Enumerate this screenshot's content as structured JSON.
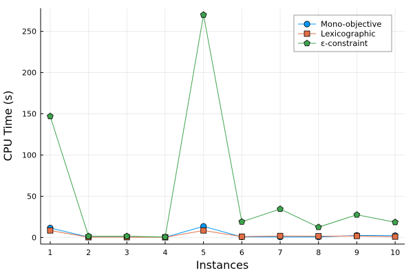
{
  "chart_data": {
    "type": "line",
    "title": "",
    "xlabel": "Instances",
    "ylabel": "CPU Time (s)",
    "x": [
      1,
      2,
      3,
      4,
      5,
      6,
      7,
      8,
      9,
      10
    ],
    "xticks": [
      "1",
      "2",
      "3",
      "4",
      "5",
      "6",
      "7",
      "8",
      "9",
      "10"
    ],
    "yticks": [
      0,
      50,
      100,
      150,
      200,
      250
    ],
    "ytick_labels": [
      "0",
      "50",
      "100",
      "150",
      "200",
      "250"
    ],
    "xlim": [
      0.75,
      10.25
    ],
    "ylim": [
      -8,
      278
    ],
    "grid": true,
    "legend_position": "top-right",
    "series": [
      {
        "name": "Mono-objective",
        "marker": "circle",
        "color": "#009AFA",
        "values": [
          11.5,
          0.5,
          0.5,
          0.3,
          13.5,
          0.7,
          0.6,
          0.5,
          2.5,
          2.2
        ]
      },
      {
        "name": "Lexicographic",
        "marker": "square",
        "color": "#E26F46",
        "values": [
          8.5,
          0.3,
          0.3,
          0.2,
          8.5,
          1.0,
          1.8,
          1.5,
          1.8,
          1.0
        ]
      },
      {
        "name": "ε-constraint",
        "marker": "pentagon",
        "color": "#3EA44E",
        "values": [
          147,
          1.5,
          1.5,
          0.5,
          270,
          19,
          34.5,
          12.5,
          27.5,
          18.5
        ]
      }
    ]
  }
}
